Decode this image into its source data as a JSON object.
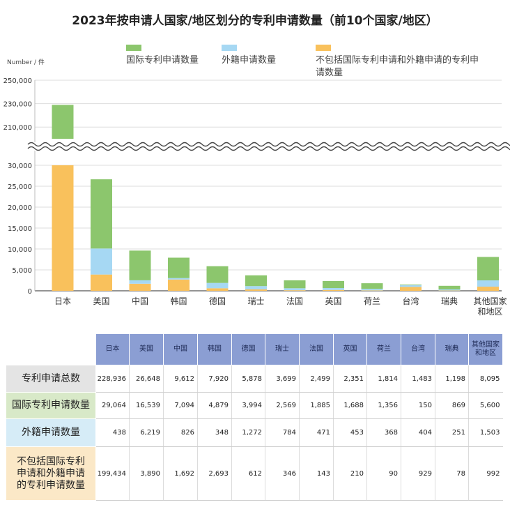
{
  "chart_data": {
    "type": "bar",
    "stacked": true,
    "title": "2023年按申请人国家/地区划分的专利申请数量（前10个国家/地区）",
    "ylabel": "Number / 件",
    "categories": [
      "日本",
      "美国",
      "中国",
      "韩国",
      "德国",
      "瑞士",
      "法国",
      "英国",
      "荷兰",
      "台湾",
      "瑞典",
      "其他国家和地区"
    ],
    "series": [
      {
        "name": "不包括国际专利申请和外籍申请的专利申请数量",
        "color": "#f9c15c",
        "values": [
          199434,
          3890,
          1692,
          2693,
          612,
          346,
          143,
          210,
          90,
          929,
          78,
          992
        ]
      },
      {
        "name": "外籍申请数量",
        "color": "#a6d8f3",
        "values": [
          438,
          6219,
          826,
          348,
          1272,
          784,
          471,
          453,
          368,
          404,
          251,
          1503
        ]
      },
      {
        "name": "国际专利申请数量",
        "color": "#8cc66d",
        "values": [
          29064,
          16539,
          7094,
          4879,
          3994,
          2569,
          1885,
          1688,
          1356,
          150,
          869,
          5600
        ]
      }
    ],
    "legend": {
      "placement": "top",
      "order": [
        "国际专利申请数量",
        "外籍申请数量",
        "不包括国际专利申请和外籍申请的专利申请数量"
      ]
    },
    "ylim_lower": [
      0,
      30000
    ],
    "ylim_upper": [
      200000,
      250000
    ],
    "axis_break": true,
    "yticks_lower": [
      "0",
      "5,000",
      "10,000",
      "15,000",
      "20,000",
      "25,000",
      "30,000"
    ],
    "yticks_upper": [
      "210,000",
      "230,000",
      "250,000"
    ],
    "grid": true
  },
  "table": {
    "headers": [
      "日本",
      "美国",
      "中国",
      "韩国",
      "德国",
      "瑞士",
      "法国",
      "英国",
      "荷兰",
      "台湾",
      "瑞典",
      "其他国家\n和地区"
    ],
    "rows": [
      {
        "label": "专利申请总数",
        "values": [
          "228,936",
          "26,648",
          "9,612",
          "7,920",
          "5,878",
          "3,699",
          "2,499",
          "2,351",
          "1,814",
          "1,483",
          "1,198",
          "8,095"
        ]
      },
      {
        "label": "国际专利申请数量",
        "values": [
          "29,064",
          "16,539",
          "7,094",
          "4,879",
          "3,994",
          "2,569",
          "1,885",
          "1,688",
          "1,356",
          "150",
          "869",
          "5,600"
        ]
      },
      {
        "label": "外籍申请数量",
        "values": [
          "438",
          "6,219",
          "826",
          "348",
          "1,272",
          "784",
          "471",
          "453",
          "368",
          "404",
          "251",
          "1,503"
        ]
      },
      {
        "label": "不包括国际专利申请和外籍申请的专利申请数量",
        "values": [
          "199,434",
          "3,890",
          "1,692",
          "2,693",
          "612",
          "346",
          "143",
          "210",
          "90",
          "929",
          "78",
          "992"
        ]
      }
    ]
  }
}
